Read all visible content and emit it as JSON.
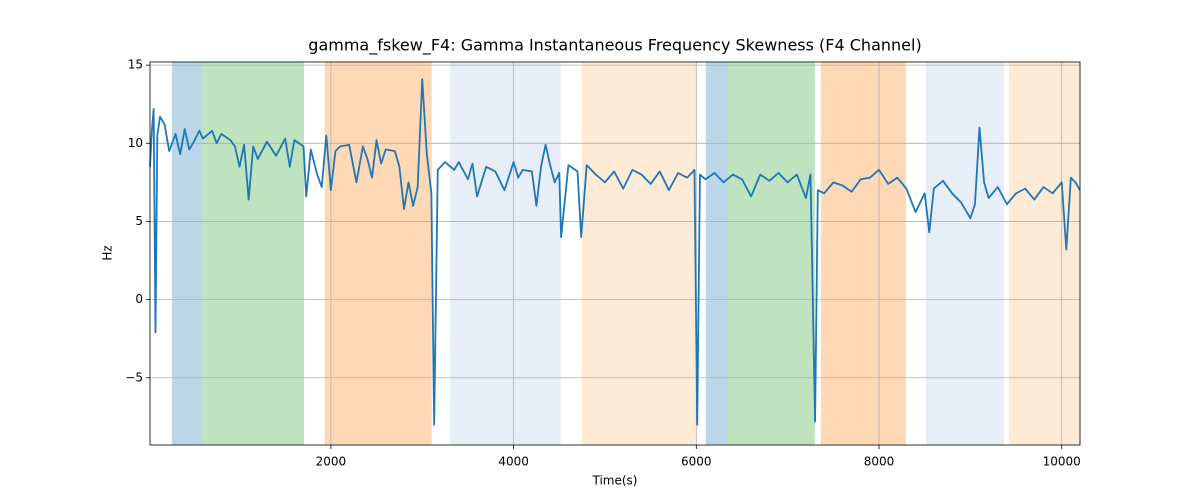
{
  "chart_data": {
    "type": "line",
    "title": "gamma_fskew_F4: Gamma Instantaneous Frequency Skewness (F4 Channel)",
    "xlabel": "Time(s)",
    "ylabel": "Hz",
    "xlim": [
      20,
      10200
    ],
    "ylim": [
      -9.3,
      15.2
    ],
    "xticks": [
      2000,
      4000,
      6000,
      8000,
      10000
    ],
    "yticks": [
      {
        "value": -5,
        "label": "−5"
      },
      0,
      5,
      10,
      15
    ],
    "grid": true,
    "spans": [
      {
        "start": 259,
        "end": 588,
        "color": "#1f77b4",
        "alpha": 0.3
      },
      {
        "start": 588,
        "end": 1705,
        "color": "#2ca02c",
        "alpha": 0.3
      },
      {
        "start": 1932,
        "end": 3104,
        "color": "#ff7f0e",
        "alpha": 0.3
      },
      {
        "start": 3301,
        "end": 4516,
        "color": "#aec7e8",
        "alpha": 0.3
      },
      {
        "start": 4747,
        "end": 5995,
        "color": "#ffbb78",
        "alpha": 0.3
      },
      {
        "start": 6104,
        "end": 6345,
        "color": "#1f77b4",
        "alpha": 0.3
      },
      {
        "start": 6345,
        "end": 7297,
        "color": "#2ca02c",
        "alpha": 0.3
      },
      {
        "start": 7363,
        "end": 8294,
        "color": "#ff7f0e",
        "alpha": 0.3
      },
      {
        "start": 8513,
        "end": 9367,
        "color": "#aec7e8",
        "alpha": 0.3
      },
      {
        "start": 9421,
        "end": 10200,
        "color": "#ffbb78",
        "alpha": 0.3
      }
    ],
    "x": [
      20,
      40,
      60,
      80,
      100,
      130,
      180,
      230,
      300,
      350,
      400,
      450,
      500,
      560,
      600,
      700,
      750,
      800,
      900,
      950,
      1000,
      1050,
      1100,
      1150,
      1200,
      1300,
      1400,
      1500,
      1550,
      1600,
      1700,
      1730,
      1780,
      1850,
      1900,
      1950,
      2000,
      2050,
      2100,
      2200,
      2280,
      2350,
      2400,
      2450,
      2500,
      2550,
      2600,
      2700,
      2750,
      2800,
      2850,
      2900,
      2950,
      3000,
      3050,
      3100,
      3130,
      3170,
      3250,
      3350,
      3400,
      3500,
      3550,
      3600,
      3700,
      3800,
      3900,
      4000,
      4050,
      4100,
      4200,
      4250,
      4300,
      4350,
      4400,
      4450,
      4500,
      4520,
      4600,
      4700,
      4740,
      4800,
      4900,
      5000,
      5100,
      5200,
      5300,
      5400,
      5500,
      5600,
      5700,
      5800,
      5900,
      5980,
      6010,
      6040,
      6100,
      6200,
      6300,
      6400,
      6500,
      6600,
      6700,
      6800,
      6900,
      7000,
      7100,
      7200,
      7250,
      7300,
      7330,
      7400,
      7500,
      7600,
      7700,
      7800,
      7900,
      8000,
      8100,
      8200,
      8300,
      8400,
      8500,
      8550,
      8600,
      8700,
      8800,
      8900,
      9000,
      9050,
      9100,
      9150,
      9200,
      9300,
      9400,
      9500,
      9600,
      9700,
      9800,
      9900,
      10000,
      10050,
      10100,
      10150,
      10200
    ],
    "series": [
      {
        "name": "gamma_fskew_F4",
        "color": "#1f77b4",
        "values": [
          8.5,
          10.8,
          12.2,
          -2.1,
          10.5,
          11.7,
          11.2,
          9.5,
          10.6,
          9.3,
          10.9,
          9.6,
          10.1,
          10.8,
          10.3,
          10.8,
          10.0,
          10.6,
          10.2,
          9.8,
          8.5,
          9.9,
          6.4,
          9.8,
          9.0,
          10.1,
          9.2,
          10.3,
          8.5,
          10.2,
          9.8,
          6.6,
          9.6,
          8.0,
          7.2,
          10.5,
          7.0,
          9.5,
          9.8,
          9.9,
          7.5,
          9.8,
          9.0,
          7.8,
          10.2,
          8.7,
          9.6,
          9.5,
          8.5,
          5.8,
          7.5,
          6.0,
          7.2,
          14.1,
          9.3,
          6.8,
          -8.0,
          8.3,
          8.8,
          8.3,
          8.8,
          7.7,
          8.7,
          6.6,
          8.5,
          8.2,
          7.0,
          8.8,
          7.8,
          8.3,
          8.2,
          6.0,
          8.5,
          9.9,
          8.6,
          7.5,
          8.1,
          4.0,
          8.6,
          8.2,
          4.0,
          8.6,
          8.0,
          7.5,
          8.2,
          7.1,
          8.3,
          8.0,
          7.4,
          8.2,
          7.0,
          8.1,
          7.8,
          8.3,
          -8.0,
          8.0,
          7.7,
          8.1,
          7.5,
          8.0,
          7.7,
          6.6,
          8.0,
          7.6,
          8.1,
          7.5,
          8.0,
          6.5,
          8.0,
          -7.8,
          7.0,
          6.8,
          7.5,
          7.3,
          6.9,
          7.7,
          7.8,
          8.3,
          7.4,
          7.8,
          7.1,
          5.6,
          6.8,
          4.3,
          7.1,
          7.6,
          6.8,
          6.2,
          5.2,
          6.1,
          11.0,
          7.5,
          6.5,
          7.2,
          6.1,
          6.8,
          7.1,
          6.4,
          7.2,
          6.8,
          7.5,
          3.2,
          7.8,
          7.5,
          7.0
        ]
      }
    ]
  }
}
